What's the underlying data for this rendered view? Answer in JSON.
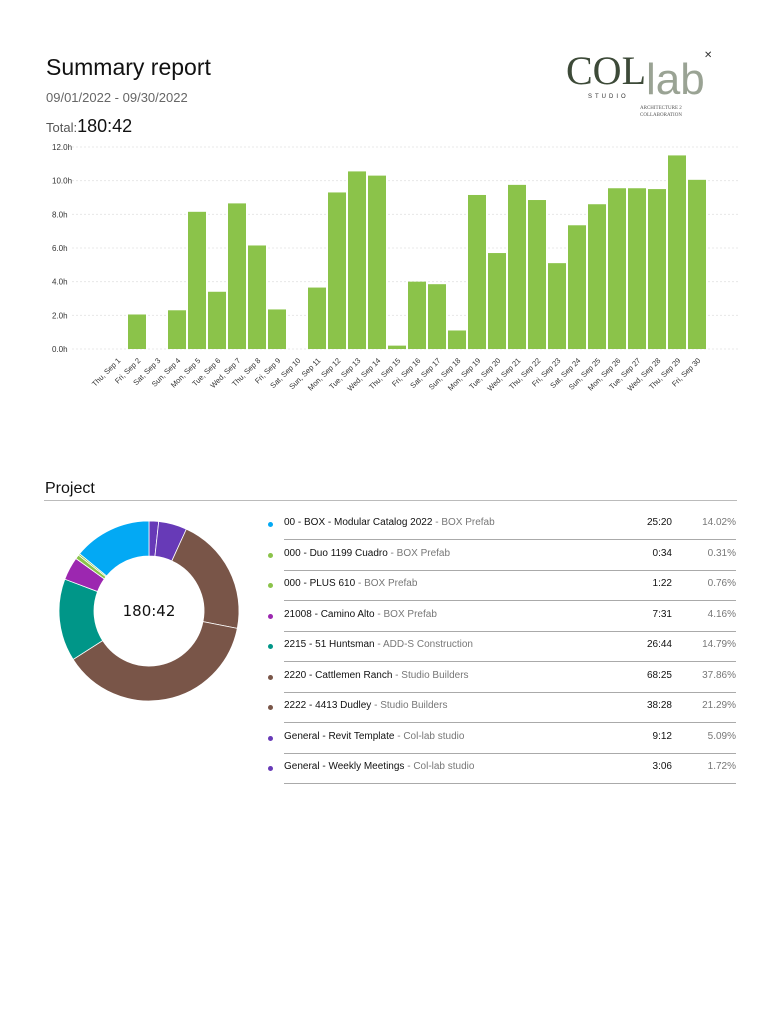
{
  "header": {
    "title": "Summary report",
    "date_range": "09/01/2022 - 09/30/2022",
    "total_label": "Total:",
    "total_value": "180:42"
  },
  "logo": {
    "text": "COLlab STUDIO ARCHITECTURE 2 COLLABORATION"
  },
  "chart_data": [
    {
      "type": "bar",
      "categories": [
        "Thu, Sep 1",
        "Fri, Sep 2",
        "Sat, Sep 3",
        "Sun, Sep 4",
        "Mon, Sep 5",
        "Tue, Sep 6",
        "Wed, Sep 7",
        "Thu, Sep 8",
        "Fri, Sep 9",
        "Sat, Sep 10",
        "Sun, Sep 11",
        "Mon, Sep 12",
        "Tue, Sep 13",
        "Wed, Sep 14",
        "Thu, Sep 15",
        "Fri, Sep 16",
        "Sat, Sep 17",
        "Sun, Sep 18",
        "Mon, Sep 19",
        "Tue, Sep 20",
        "Wed, Sep 21",
        "Thu, Sep 22",
        "Fri, Sep 23",
        "Sat, Sep 24",
        "Sun, Sep 25",
        "Mon, Sep 26",
        "Tue, Sep 27",
        "Wed, Sep 28",
        "Thu, Sep 29",
        "Fri, Sep 30"
      ],
      "values": [
        0,
        2.05,
        0,
        2.3,
        8.15,
        3.4,
        8.65,
        6.15,
        2.35,
        0,
        3.65,
        9.3,
        10.55,
        10.3,
        0.2,
        4.0,
        3.85,
        1.1,
        9.15,
        5.7,
        9.75,
        8.85,
        5.1,
        7.35,
        8.6,
        9.55,
        9.55,
        9.5,
        11.5,
        10.05
      ],
      "yticks": [
        "0.0h",
        "2.0h",
        "4.0h",
        "6.0h",
        "8.0h",
        "10.0h",
        "12.0h"
      ],
      "ylim": [
        0,
        12
      ],
      "grid": true,
      "color": "#8bc34a"
    },
    {
      "type": "pie",
      "center_label": "180:42",
      "slices": [
        {
          "label": "00 - BOX - Modular Catalog 2022",
          "client": "BOX Prefab",
          "time": "25:20",
          "percent": 14.02,
          "percent_label": "14.02%",
          "color": "#03a9f4"
        },
        {
          "label": "000 - Duo 1199 Cuadro",
          "client": "BOX Prefab",
          "time": "0:34",
          "percent": 0.31,
          "percent_label": "0.31%",
          "color": "#8bc34a"
        },
        {
          "label": "000 - PLUS 610",
          "client": "BOX Prefab",
          "time": "1:22",
          "percent": 0.76,
          "percent_label": "0.76%",
          "color": "#8bc34a"
        },
        {
          "label": "21008 - Camino Alto",
          "client": "BOX Prefab",
          "time": "7:31",
          "percent": 4.16,
          "percent_label": "4.16%",
          "color": "#9c27b0"
        },
        {
          "label": "2215 - 51 Huntsman",
          "client": "ADD-S Construction",
          "time": "26:44",
          "percent": 14.79,
          "percent_label": "14.79%",
          "color": "#009688"
        },
        {
          "label": "2220 - Cattlemen Ranch",
          "client": "Studio Builders",
          "time": "68:25",
          "percent": 37.86,
          "percent_label": "37.86%",
          "color": "#795548"
        },
        {
          "label": "2222 - 4413 Dudley",
          "client": "Studio Builders",
          "time": "38:28",
          "percent": 21.29,
          "percent_label": "21.29%",
          "color": "#795548"
        },
        {
          "label": "General - Revit Template",
          "client": "Col-lab studio",
          "time": "9:12",
          "percent": 5.09,
          "percent_label": "5.09%",
          "color": "#673ab7"
        },
        {
          "label": "General - Weekly Meetings",
          "client": "Col-lab studio",
          "time": "3:06",
          "percent": 1.72,
          "percent_label": "1.72%",
          "color": "#673ab7"
        }
      ]
    }
  ],
  "project_section": {
    "heading": "Project"
  }
}
